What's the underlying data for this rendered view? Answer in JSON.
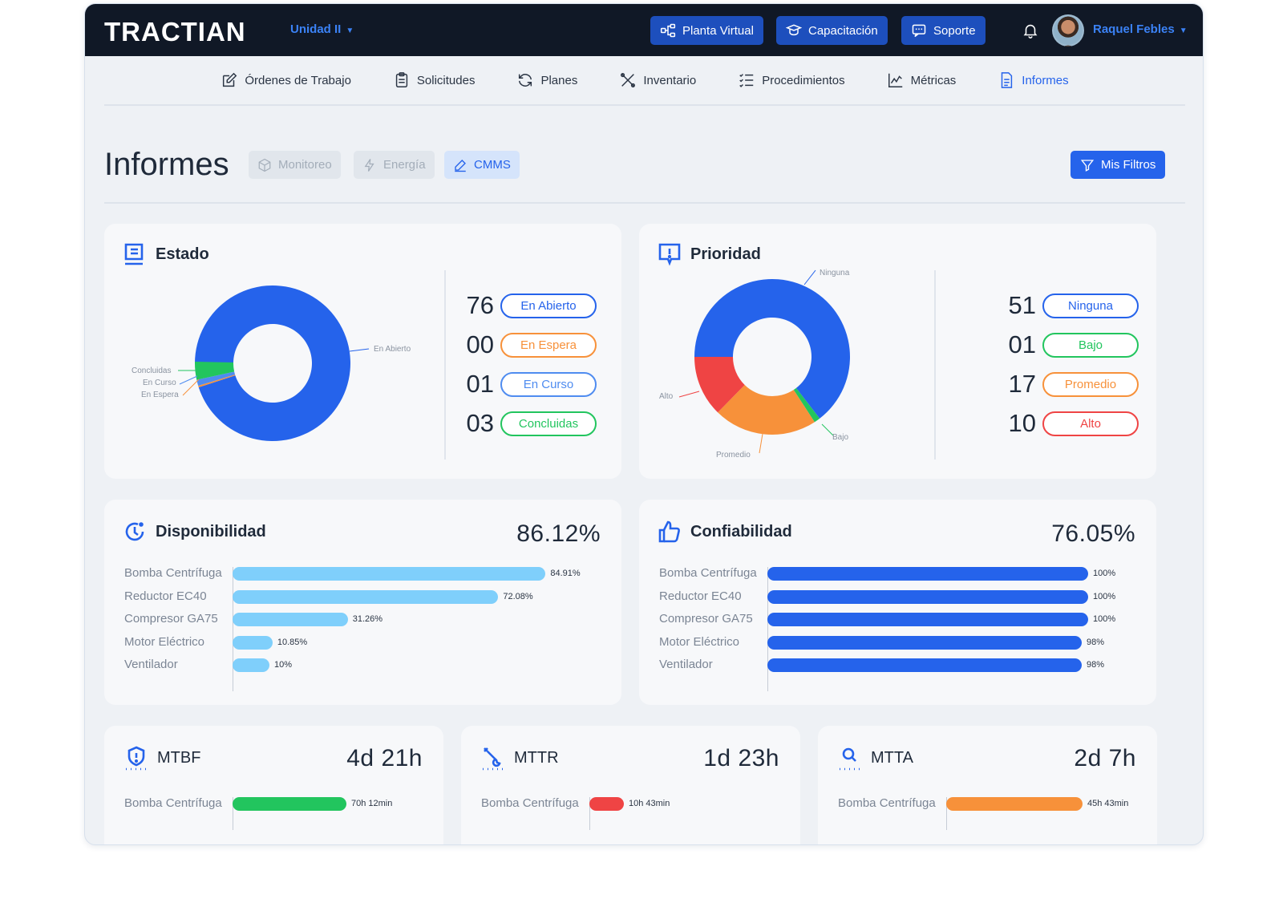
{
  "app": {
    "brand": "TRACTIAN",
    "unit": "Unidad II",
    "top_buttons": [
      {
        "label": "Planta Virtual",
        "icon": "hierarchy-icon"
      },
      {
        "label": "Capacitación",
        "icon": "graduation-icon"
      },
      {
        "label": "Soporte",
        "icon": "chat-icon"
      }
    ],
    "user": "Raquel Febles"
  },
  "nav": {
    "items": [
      {
        "label": "Órdenes de Trabajo",
        "icon": "edit-icon"
      },
      {
        "label": "Solicitudes",
        "icon": "clipboard-icon"
      },
      {
        "label": "Planes",
        "icon": "cycle-icon"
      },
      {
        "label": "Inventario",
        "icon": "tools-icon"
      },
      {
        "label": "Procedimientos",
        "icon": "checklist-icon"
      },
      {
        "label": "Métricas",
        "icon": "chart-icon"
      },
      {
        "label": "Informes",
        "icon": "document-icon",
        "active": true
      }
    ]
  },
  "header": {
    "title": "Informes",
    "tabs": [
      {
        "label": "Monitoreo",
        "active": false
      },
      {
        "label": "Energía",
        "active": false
      },
      {
        "label": "CMMS",
        "active": true
      }
    ],
    "filters_label": "Mis Filtros"
  },
  "colors": {
    "blue": "#2563eb",
    "orange": "#f7913a",
    "green": "#22c55e",
    "red": "#ef4444",
    "light_blue": "#7fcffb"
  },
  "estado": {
    "title": "Estado",
    "items": [
      {
        "count": "76",
        "label": "En Abierto",
        "color": "#2563eb",
        "value": 76
      },
      {
        "count": "00",
        "label": "En Espera",
        "color": "#f7913a",
        "value": 0
      },
      {
        "count": "01",
        "label": "En Curso",
        "color": "#4f8cf0",
        "value": 1
      },
      {
        "count": "03",
        "label": "Concluidas",
        "color": "#22c55e",
        "value": 3
      }
    ]
  },
  "prioridad": {
    "title": "Prioridad",
    "items": [
      {
        "count": "51",
        "label": "Ninguna",
        "color": "#2563eb",
        "value": 51
      },
      {
        "count": "01",
        "label": "Bajo",
        "color": "#22c55e",
        "value": 1
      },
      {
        "count": "17",
        "label": "Promedio",
        "color": "#f7913a",
        "value": 17
      },
      {
        "count": "10",
        "label": "Alto",
        "color": "#ef4444",
        "value": 10
      }
    ]
  },
  "disponibilidad": {
    "title": "Disponibilidad",
    "total": "86.12%",
    "rows": [
      {
        "label": "Bomba Centrífuga",
        "value": 84.91,
        "text": "84.91%"
      },
      {
        "label": "Reductor EC40",
        "value": 72.08,
        "text": "72.08%"
      },
      {
        "label": "Compresor GA75",
        "value": 31.26,
        "text": "31.26%"
      },
      {
        "label": "Motor Eléctrico",
        "value": 10.85,
        "text": "10.85%"
      },
      {
        "label": "Ventilador",
        "value": 10,
        "text": "10%"
      }
    ]
  },
  "confiabilidad": {
    "title": "Confiabilidad",
    "total": "76.05%",
    "rows": [
      {
        "label": "Bomba Centrífuga",
        "value": 100,
        "text": "100%"
      },
      {
        "label": "Reductor EC40",
        "value": 100,
        "text": "100%"
      },
      {
        "label": "Compresor GA75",
        "value": 100,
        "text": "100%"
      },
      {
        "label": "Motor Eléctrico",
        "value": 98,
        "text": "98%"
      },
      {
        "label": "Ventilador",
        "value": 98,
        "text": "98%"
      }
    ]
  },
  "mtbf": {
    "title": "MTBF",
    "total": "4d 21h",
    "rows": [
      {
        "label": "Bomba Centrífuga",
        "value": 70.2,
        "text": "70h 12min"
      }
    ]
  },
  "mttr": {
    "title": "MTTR",
    "total": "1d 23h",
    "rows": [
      {
        "label": "Bomba Centrífuga",
        "value": 10.72,
        "text": "10h 43min"
      }
    ]
  },
  "mtta": {
    "title": "MTTA",
    "total": "2d 7h",
    "rows": [
      {
        "label": "Bomba Centrífuga",
        "value": 45.72,
        "text": "45h 43min"
      }
    ]
  }
}
